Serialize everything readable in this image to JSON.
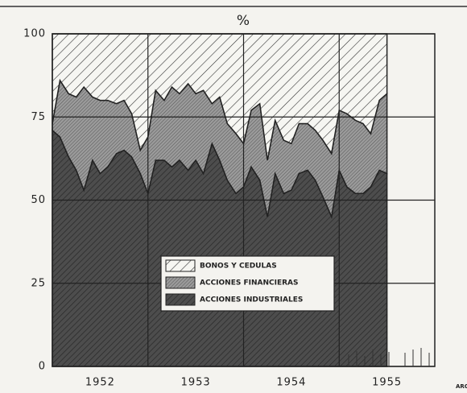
{
  "chart_data": {
    "type": "stacked_area",
    "title": "%",
    "note": "ARG",
    "x": [
      1952,
      1952.08,
      1952.17,
      1952.25,
      1952.33,
      1952.42,
      1952.5,
      1952.58,
      1952.67,
      1952.75,
      1952.83,
      1952.92,
      1953,
      1953.08,
      1953.17,
      1953.25,
      1953.33,
      1953.42,
      1953.5,
      1953.58,
      1953.67,
      1953.75,
      1953.83,
      1953.92,
      1954,
      1954.08,
      1954.17,
      1954.25,
      1954.33,
      1954.42,
      1954.5,
      1954.58,
      1954.67,
      1954.75,
      1954.83,
      1954.92,
      1955,
      1955.08,
      1955.17,
      1955.25,
      1955.33,
      1955.42,
      1955.5
    ],
    "series": [
      {
        "name": "ACCIONES INDUSTRIALES",
        "color": "#4d4d4d",
        "values": [
          71,
          69,
          63,
          59,
          53,
          62,
          58,
          60,
          64,
          65,
          63,
          58,
          52,
          62,
          62,
          60,
          62,
          59,
          62,
          58,
          67,
          62,
          56,
          52,
          54,
          60,
          56,
          45,
          58,
          52,
          53,
          58,
          59,
          56,
          51,
          45,
          59,
          54,
          52,
          52,
          54,
          59,
          58
        ]
      },
      {
        "name": "ACCIONES FINANCIERAS",
        "color": "#9b9b9b",
        "values": [
          2,
          17,
          19,
          22,
          31,
          19,
          22,
          20,
          15,
          15,
          13,
          7,
          17,
          21,
          18,
          24,
          20,
          26,
          20,
          25,
          12,
          19,
          17,
          18,
          13,
          17,
          23,
          17,
          16,
          16,
          14,
          15,
          14,
          15,
          17,
          19,
          18,
          22,
          22,
          21,
          16,
          21,
          24
        ]
      },
      {
        "name": "BONOS Y CEDULAS",
        "color": "#f6f6f2",
        "values": [
          27,
          14,
          18,
          19,
          16,
          19,
          20,
          20,
          21,
          20,
          24,
          35,
          31,
          17,
          20,
          16,
          18,
          15,
          18,
          17,
          21,
          19,
          27,
          30,
          33,
          23,
          21,
          38,
          26,
          32,
          33,
          27,
          27,
          29,
          32,
          36,
          23,
          24,
          26,
          27,
          30,
          20,
          18
        ]
      }
    ],
    "xlim": [
      1952,
      1956
    ],
    "xticks": [
      {
        "value": 1952.5,
        "label": "1952"
      },
      {
        "value": 1953.5,
        "label": "1953"
      },
      {
        "value": 1954.5,
        "label": "1954"
      },
      {
        "value": 1955.5,
        "label": "1955"
      }
    ],
    "xgrid": [
      1953,
      1954,
      1955
    ],
    "ylim": [
      0,
      100
    ],
    "yticks": [
      0,
      25,
      50,
      75,
      100
    ],
    "grid": true,
    "legend": "bottom-center"
  }
}
